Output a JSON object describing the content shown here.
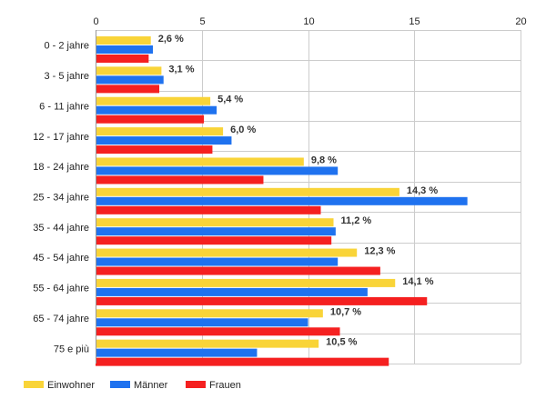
{
  "chart_data": {
    "type": "bar",
    "orientation": "horizontal",
    "x_ticks": [
      "0",
      "5",
      "10",
      "15",
      "20"
    ],
    "xlim": [
      0,
      20
    ],
    "grid": true,
    "legend_position": "bottom-left",
    "categories": [
      "0 - 2 jahre",
      "3 - 5 jahre",
      "6 - 11 jahre",
      "12 - 17 jahre",
      "18 - 24 jahre",
      "25 - 34 jahre",
      "35 - 44 jahre",
      "45 - 54 jahre",
      "55 - 64 jahre",
      "65 - 74 jahre",
      "75 e più"
    ],
    "series": [
      {
        "name": "Einwohner",
        "color": "#f9d438",
        "values": [
          2.6,
          3.1,
          5.4,
          6.0,
          9.8,
          14.3,
          11.2,
          12.3,
          14.1,
          10.7,
          10.5
        ]
      },
      {
        "name": "Männer",
        "color": "#1f72ef",
        "values": [
          2.7,
          3.2,
          5.7,
          6.4,
          11.4,
          17.5,
          11.3,
          11.4,
          12.8,
          10.0,
          7.6
        ]
      },
      {
        "name": "Frauen",
        "color": "#f52020",
        "values": [
          2.5,
          3.0,
          5.1,
          5.5,
          7.9,
          10.6,
          11.1,
          13.4,
          15.6,
          11.5,
          13.8
        ]
      }
    ],
    "data_labels": [
      "2,6 %",
      "3,1 %",
      "5,4 %",
      "6,0 %",
      "9,8 %",
      "14,3 %",
      "11,2 %",
      "12,3 %",
      "14,1 %",
      "10,7 %",
      "10,5 %"
    ]
  }
}
